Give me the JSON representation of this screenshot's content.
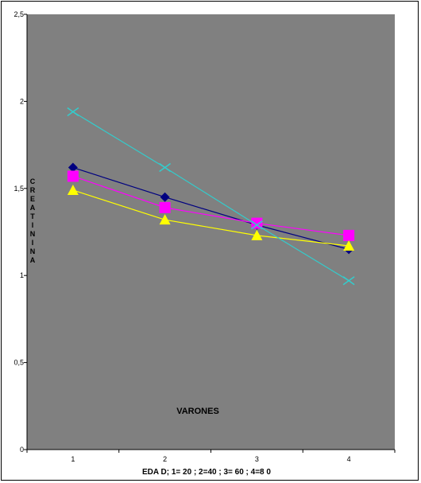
{
  "chart_data": {
    "type": "line",
    "xlabel": "EDA D; 1= 20 ; 2=40 ; 3= 60 ; 4=8 0",
    "ylabel": "C R E A T I N I N A",
    "annotation": "VARONES",
    "x": [
      1,
      2,
      3,
      4
    ],
    "x_tick_labels": [
      "1",
      "2",
      "3",
      "4"
    ],
    "y_tick_labels": [
      "0",
      "0,5",
      "1",
      "1,5",
      "2",
      "2,5"
    ],
    "ylim": [
      0,
      2.5
    ],
    "grid": false,
    "plot_background": "#808080",
    "series": [
      {
        "marker": "diamond",
        "color": "#000080",
        "values": [
          1.62,
          1.45,
          1.29,
          1.15
        ]
      },
      {
        "marker": "square",
        "color": "#ff00ff",
        "values": [
          1.57,
          1.39,
          1.3,
          1.23
        ]
      },
      {
        "marker": "triangle",
        "color": "#ffff00",
        "values": [
          1.49,
          1.32,
          1.23,
          1.17
        ]
      },
      {
        "marker": "x",
        "color": "#33cccc",
        "values": [
          1.94,
          1.62,
          1.29,
          0.97
        ]
      }
    ]
  }
}
